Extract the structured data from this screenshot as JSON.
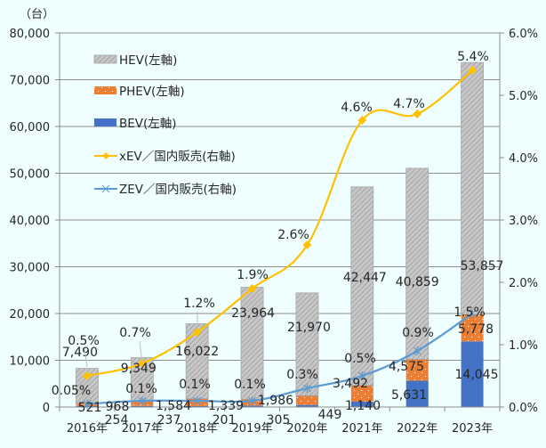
{
  "chart_data": {
    "type": "bar",
    "stacked": true,
    "title": "",
    "left_axis": {
      "unit_label": "（台）",
      "range": [
        0,
        80000
      ],
      "ticks": [
        "0",
        "10,000",
        "20,000",
        "30,000",
        "40,000",
        "50,000",
        "60,000",
        "70,000",
        "80,000"
      ]
    },
    "right_axis": {
      "range": [
        0,
        6.0
      ],
      "ticks": [
        "0.0%",
        "1.0%",
        "2.0%",
        "3.0%",
        "4.0%",
        "5.0%",
        "6.0%"
      ]
    },
    "categories": [
      "2016年",
      "2017年",
      "2018年",
      "2019年",
      "2020年",
      "2021年",
      "2022年",
      "2023年"
    ],
    "series": [
      {
        "name": "BEV(左軸)",
        "kind": "bar",
        "axis": "left",
        "color": "#4472c4",
        "values": [
          254,
          237,
          201,
          305,
          449,
          1140,
          5631,
          14045
        ],
        "labels": [
          "254",
          "237",
          "201",
          "305",
          "449",
          "1,140",
          "5,631",
          "14,045"
        ]
      },
      {
        "name": "PHEV(左軸)",
        "kind": "bar",
        "axis": "left",
        "color": "#ed7d31",
        "values": [
          521,
          968,
          1584,
          1339,
          1986,
          3492,
          4575,
          5778
        ],
        "labels": [
          "521",
          "968",
          "1,584",
          "1,339",
          "1,986",
          "3,492",
          "4,575",
          "5,778"
        ]
      },
      {
        "name": "HEV(左軸)",
        "kind": "bar",
        "axis": "left",
        "color": "#a5a5a5",
        "values": [
          7490,
          9349,
          16022,
          23964,
          21970,
          42447,
          40859,
          53857
        ],
        "labels": [
          "7,490",
          "9,349",
          "16,022",
          "23,964",
          "21,970",
          "42,447",
          "40,859",
          "53,857"
        ]
      },
      {
        "name": "xEV／国内販売(右軸)",
        "kind": "line",
        "axis": "right",
        "color": "#ffc000",
        "marker": "diamond",
        "values": [
          0.5,
          0.7,
          1.2,
          1.9,
          2.6,
          4.6,
          4.7,
          5.4
        ],
        "labels": [
          "0.5%",
          "0.7%",
          "1.2%",
          "1.9%",
          "2.6%",
          "4.6%",
          "4.7%",
          "5.4%"
        ]
      },
      {
        "name": "ZEV／国内販売(右軸)",
        "kind": "line",
        "axis": "right",
        "color": "#5b9bd5",
        "marker": "asterisk",
        "values": [
          0.05,
          0.1,
          0.1,
          0.1,
          0.3,
          0.5,
          0.9,
          1.5
        ],
        "labels": [
          "0.05%",
          "0.1%",
          "0.1%",
          "0.1%",
          "0.3%",
          "0.5%",
          "0.9%",
          "1.5%"
        ]
      }
    ],
    "legend": {
      "position": "top-left-inside",
      "entries": [
        "HEV(左軸)",
        "PHEV(左軸)",
        "BEV(左軸)",
        "xEV／国内販売(右軸)",
        "ZEV／国内販売(右軸)"
      ]
    },
    "grid": true
  }
}
